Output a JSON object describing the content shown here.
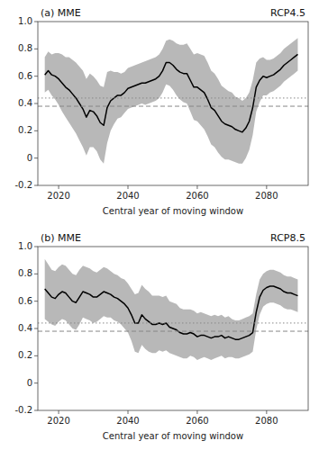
{
  "chart_data": [
    {
      "type": "line",
      "title": "(a) MME",
      "subtitle": "RCP4.5",
      "x_label": "Central year of moving window",
      "xlim": [
        2014,
        2092
      ],
      "xticks": [
        2020,
        2040,
        2060,
        2080
      ],
      "ylim": [
        -0.2,
        1.0
      ],
      "yticks": [
        -0.2,
        0,
        0.2,
        0.4,
        0.6,
        0.8,
        {
          "value": 1.0,
          "label": "1.0"
        }
      ],
      "grid": false,
      "x": [
        2016,
        2017,
        2018,
        2019,
        2020,
        2021,
        2022,
        2023,
        2024,
        2025,
        2026,
        2027,
        2028,
        2029,
        2030,
        2031,
        2032,
        2033,
        2034,
        2035,
        2036,
        2037,
        2038,
        2039,
        2040,
        2041,
        2042,
        2043,
        2044,
        2045,
        2046,
        2047,
        2048,
        2049,
        2050,
        2051,
        2052,
        2053,
        2054,
        2055,
        2056,
        2057,
        2058,
        2059,
        2060,
        2061,
        2062,
        2063,
        2064,
        2065,
        2066,
        2067,
        2068,
        2069,
        2070,
        2071,
        2072,
        2073,
        2074,
        2075,
        2076,
        2077,
        2078,
        2079,
        2080,
        2081,
        2082,
        2083,
        2084,
        2085,
        2086,
        2087,
        2088,
        2089
      ],
      "series": [
        {
          "color": "#000000",
          "values": [
            0.61,
            0.64,
            0.61,
            0.6,
            0.58,
            0.55,
            0.52,
            0.5,
            0.47,
            0.44,
            0.4,
            0.36,
            0.3,
            0.35,
            0.34,
            0.31,
            0.26,
            0.24,
            0.37,
            0.42,
            0.44,
            0.46,
            0.46,
            0.48,
            0.51,
            0.52,
            0.53,
            0.54,
            0.55,
            0.55,
            0.56,
            0.57,
            0.58,
            0.6,
            0.64,
            0.7,
            0.7,
            0.68,
            0.65,
            0.63,
            0.62,
            0.62,
            0.57,
            0.52,
            0.52,
            0.5,
            0.48,
            0.43,
            0.37,
            0.35,
            0.31,
            0.27,
            0.25,
            0.24,
            0.23,
            0.21,
            0.2,
            0.19,
            0.22,
            0.27,
            0.37,
            0.52,
            0.57,
            0.6,
            0.59,
            0.6,
            0.61,
            0.63,
            0.65,
            0.68,
            0.7,
            0.72,
            0.74,
            0.76
          ],
          "std": [
            0.13,
            0.14,
            0.15,
            0.17,
            0.19,
            0.21,
            0.22,
            0.24,
            0.25,
            0.26,
            0.27,
            0.28,
            0.28,
            0.27,
            0.26,
            0.26,
            0.27,
            0.28,
            0.26,
            0.22,
            0.19,
            0.17,
            0.16,
            0.15,
            0.15,
            0.15,
            0.15,
            0.15,
            0.15,
            0.16,
            0.16,
            0.16,
            0.16,
            0.16,
            0.16,
            0.16,
            0.17,
            0.18,
            0.19,
            0.2,
            0.21,
            0.22,
            0.23,
            0.24,
            0.25,
            0.26,
            0.27,
            0.27,
            0.27,
            0.27,
            0.27,
            0.26,
            0.26,
            0.25,
            0.25,
            0.24,
            0.24,
            0.23,
            0.22,
            0.21,
            0.2,
            0.18,
            0.16,
            0.14,
            0.13,
            0.12,
            0.12,
            0.12,
            0.12,
            0.12,
            0.12,
            0.12,
            0.12,
            0.12
          ]
        }
      ],
      "hlines": [
        {
          "value": 0.44,
          "line_style": "dotted"
        },
        {
          "value": 0.38,
          "line_style": "dashed"
        }
      ]
    },
    {
      "type": "line",
      "title": "(b) MME",
      "subtitle": "RCP8.5",
      "x_label": "Central year of moving window",
      "xlim": [
        2014,
        2092
      ],
      "xticks": [
        2020,
        2040,
        2060,
        2080
      ],
      "ylim": [
        -0.2,
        1.0
      ],
      "yticks": [
        -0.2,
        0,
        0.2,
        0.4,
        0.6,
        0.8,
        {
          "value": 1.0,
          "label": "1.0"
        }
      ],
      "grid": false,
      "x": [
        2016,
        2017,
        2018,
        2019,
        2020,
        2021,
        2022,
        2023,
        2024,
        2025,
        2026,
        2027,
        2028,
        2029,
        2030,
        2031,
        2032,
        2033,
        2034,
        2035,
        2036,
        2037,
        2038,
        2039,
        2040,
        2041,
        2042,
        2043,
        2044,
        2045,
        2046,
        2047,
        2048,
        2049,
        2050,
        2051,
        2052,
        2053,
        2054,
        2055,
        2056,
        2057,
        2058,
        2059,
        2060,
        2061,
        2062,
        2063,
        2064,
        2065,
        2066,
        2067,
        2068,
        2069,
        2070,
        2071,
        2072,
        2073,
        2074,
        2075,
        2076,
        2077,
        2078,
        2079,
        2080,
        2081,
        2082,
        2083,
        2084,
        2085,
        2086,
        2087,
        2088,
        2089
      ],
      "series": [
        {
          "color": "#000000",
          "values": [
            0.69,
            0.66,
            0.63,
            0.62,
            0.65,
            0.67,
            0.66,
            0.63,
            0.6,
            0.59,
            0.63,
            0.67,
            0.66,
            0.65,
            0.63,
            0.63,
            0.65,
            0.67,
            0.66,
            0.65,
            0.63,
            0.62,
            0.6,
            0.58,
            0.55,
            0.5,
            0.44,
            0.44,
            0.5,
            0.47,
            0.45,
            0.43,
            0.43,
            0.44,
            0.43,
            0.44,
            0.41,
            0.4,
            0.39,
            0.37,
            0.36,
            0.36,
            0.37,
            0.36,
            0.34,
            0.35,
            0.35,
            0.34,
            0.33,
            0.34,
            0.34,
            0.35,
            0.33,
            0.34,
            0.33,
            0.32,
            0.32,
            0.33,
            0.34,
            0.35,
            0.37,
            0.52,
            0.63,
            0.68,
            0.7,
            0.71,
            0.71,
            0.7,
            0.69,
            0.67,
            0.66,
            0.66,
            0.65,
            0.64
          ],
          "std": [
            0.22,
            0.21,
            0.2,
            0.2,
            0.2,
            0.2,
            0.2,
            0.2,
            0.2,
            0.2,
            0.2,
            0.19,
            0.19,
            0.19,
            0.19,
            0.18,
            0.18,
            0.18,
            0.18,
            0.17,
            0.17,
            0.17,
            0.17,
            0.18,
            0.18,
            0.19,
            0.21,
            0.22,
            0.22,
            0.22,
            0.22,
            0.21,
            0.21,
            0.2,
            0.2,
            0.2,
            0.19,
            0.19,
            0.19,
            0.18,
            0.18,
            0.18,
            0.17,
            0.17,
            0.17,
            0.17,
            0.16,
            0.16,
            0.16,
            0.16,
            0.15,
            0.15,
            0.15,
            0.15,
            0.14,
            0.14,
            0.14,
            0.14,
            0.14,
            0.14,
            0.14,
            0.13,
            0.13,
            0.12,
            0.12,
            0.12,
            0.12,
            0.12,
            0.12,
            0.12,
            0.12,
            0.12,
            0.12,
            0.12
          ]
        }
      ],
      "hlines": [
        {
          "value": 0.44,
          "line_style": "dotted"
        },
        {
          "value": 0.38,
          "line_style": "dashed"
        }
      ]
    }
  ]
}
